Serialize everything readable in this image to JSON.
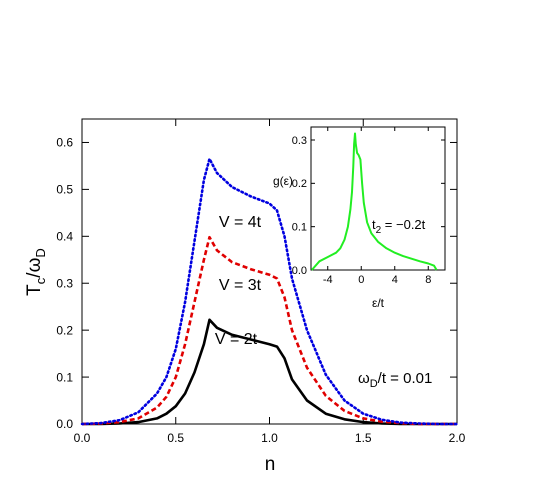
{
  "chart_data": [
    {
      "type": "line",
      "ylabel": "T",
      "ylabel_sub1": "c",
      "ylabel_mid": "/ω",
      "ylabel_sub2": "D",
      "xlabel": "n",
      "xlim": [
        0.0,
        2.0
      ],
      "ylim": [
        0.0,
        0.65
      ],
      "xticks": [
        "0.0",
        "0.5",
        "1.0",
        "1.5",
        "2.0"
      ],
      "yticks": [
        "0.0",
        "0.1",
        "0.2",
        "0.3",
        "0.4",
        "0.5",
        "0.6"
      ],
      "annotation_main": "ω",
      "annotation_sub": "D",
      "annotation_rest": "/t = 0.01",
      "series": [
        {
          "name": "V = 2t",
          "color": "#000000",
          "style": "solid",
          "x": [
            0.0,
            0.1,
            0.2,
            0.3,
            0.4,
            0.45,
            0.5,
            0.55,
            0.6,
            0.65,
            0.68,
            0.72,
            0.8,
            0.9,
            1.0,
            1.04,
            1.08,
            1.12,
            1.2,
            1.3,
            1.4,
            1.5,
            1.6,
            1.7,
            1.8,
            1.9,
            2.0
          ],
          "y": [
            0.0,
            0.0,
            0.001,
            0.004,
            0.012,
            0.022,
            0.038,
            0.065,
            0.11,
            0.17,
            0.222,
            0.205,
            0.19,
            0.18,
            0.17,
            0.165,
            0.14,
            0.095,
            0.05,
            0.022,
            0.01,
            0.004,
            0.001,
            0.0,
            0.0,
            0.0,
            0.0
          ]
        },
        {
          "name": "V = 3t",
          "color": "#e00000",
          "style": "dashed",
          "x": [
            0.0,
            0.1,
            0.2,
            0.3,
            0.4,
            0.45,
            0.5,
            0.55,
            0.6,
            0.65,
            0.68,
            0.72,
            0.8,
            0.9,
            1.0,
            1.04,
            1.08,
            1.12,
            1.2,
            1.3,
            1.4,
            1.5,
            1.6,
            1.7,
            1.8,
            1.9,
            2.0
          ],
          "y": [
            0.0,
            0.001,
            0.004,
            0.012,
            0.035,
            0.058,
            0.1,
            0.17,
            0.26,
            0.35,
            0.398,
            0.37,
            0.345,
            0.33,
            0.318,
            0.31,
            0.27,
            0.2,
            0.12,
            0.06,
            0.028,
            0.012,
            0.005,
            0.002,
            0.0,
            0.0,
            0.0
          ]
        },
        {
          "name": "V = 4t",
          "color": "#0000e0",
          "style": "dotted",
          "x": [
            0.0,
            0.1,
            0.2,
            0.3,
            0.4,
            0.45,
            0.5,
            0.55,
            0.6,
            0.65,
            0.68,
            0.72,
            0.8,
            0.9,
            1.0,
            1.04,
            1.08,
            1.12,
            1.2,
            1.3,
            1.4,
            1.5,
            1.6,
            1.7,
            1.8,
            1.9,
            2.0
          ],
          "y": [
            0.0,
            0.002,
            0.008,
            0.025,
            0.065,
            0.1,
            0.16,
            0.26,
            0.39,
            0.52,
            0.565,
            0.535,
            0.505,
            0.485,
            0.47,
            0.455,
            0.4,
            0.31,
            0.2,
            0.105,
            0.05,
            0.022,
            0.009,
            0.003,
            0.001,
            0.0,
            0.0
          ]
        }
      ]
    },
    {
      "type": "line",
      "inset": true,
      "xlabel": "ε/t",
      "ylabel": "g(ε)",
      "xlim": [
        -6.0,
        10.0
      ],
      "ylim": [
        0.0,
        0.33
      ],
      "xticks": [
        "-4",
        "0",
        "4",
        "8"
      ],
      "yticks": [
        "0.0",
        "0.1",
        "0.2",
        "0.3"
      ],
      "annotation_main": "t",
      "annotation_sub": "2",
      "annotation_rest": " = −0.2t",
      "series": [
        {
          "color": "#22ee22",
          "x": [
            -5.9,
            -5.0,
            -4.0,
            -3.0,
            -2.5,
            -2.0,
            -1.6,
            -1.3,
            -1.1,
            -0.95,
            -0.85,
            -0.75,
            -0.65,
            -0.5,
            -0.3,
            -0.1,
            0.1,
            0.3,
            0.7,
            1.2,
            2.0,
            3.0,
            4.0,
            5.0,
            6.0,
            7.0,
            8.0,
            8.7,
            9.0
          ],
          "y": [
            0.0,
            0.02,
            0.03,
            0.04,
            0.05,
            0.07,
            0.1,
            0.14,
            0.18,
            0.24,
            0.29,
            0.315,
            0.29,
            0.27,
            0.265,
            0.255,
            0.2,
            0.155,
            0.11,
            0.085,
            0.065,
            0.05,
            0.04,
            0.032,
            0.026,
            0.02,
            0.015,
            0.01,
            0.0
          ]
        }
      ]
    }
  ]
}
